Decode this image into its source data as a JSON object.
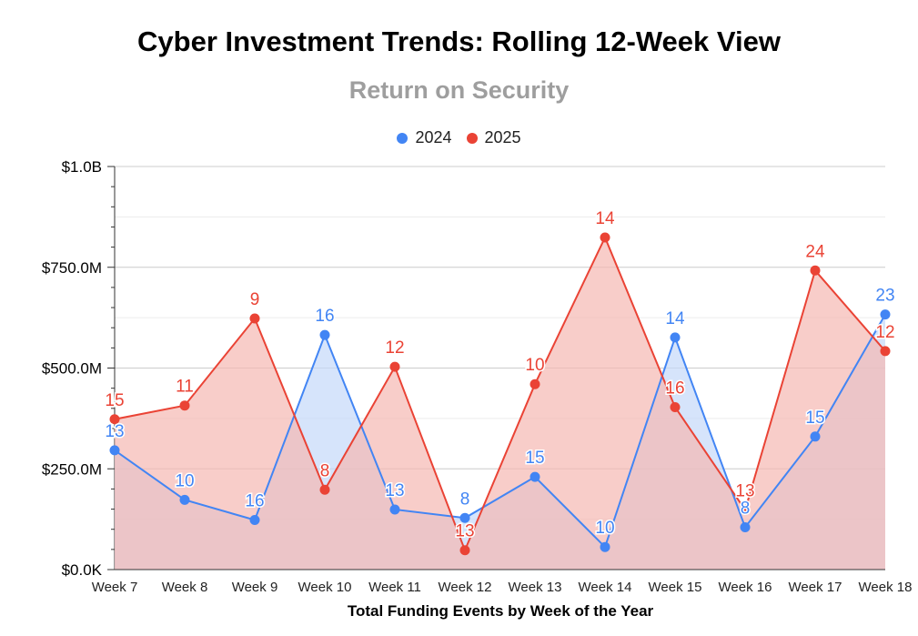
{
  "chart_data": {
    "type": "area",
    "title": "Cyber Investment Trends: Rolling 12-Week View",
    "subtitle": "Return on Security",
    "xlabel": "Total Funding Events by Week of the Year",
    "ylabel": "",
    "categories": [
      "Week 7",
      "Week 8",
      "Week 9",
      "Week 10",
      "Week 11",
      "Week 12",
      "Week 13",
      "Week 14",
      "Week 15",
      "Week 16",
      "Week 17",
      "Week 18"
    ],
    "ylim": [
      0,
      1000
    ],
    "y_unit": "$M",
    "yticks": [
      {
        "value": 0,
        "label": "$0.0K"
      },
      {
        "value": 250,
        "label": "$250.0M"
      },
      {
        "value": 500,
        "label": "$500.0M"
      },
      {
        "value": 750,
        "label": "$750.0M"
      },
      {
        "value": 1000,
        "label": "$1.0B"
      }
    ],
    "grid": true,
    "legend_position": "top",
    "series": [
      {
        "name": "2024",
        "color": "#4285f4",
        "fill": "#c5d8fa",
        "values": [
          296,
          173,
          123,
          582,
          149,
          128,
          230,
          56,
          576,
          105,
          330,
          633
        ],
        "labels": [
          "13",
          "10",
          "16",
          "16",
          "13",
          "8",
          "15",
          "10",
          "14",
          "8",
          "15",
          "23"
        ]
      },
      {
        "name": "2025",
        "color": "#ea4335",
        "fill": "#f5b8b2",
        "values": [
          373,
          407,
          623,
          198,
          503,
          48,
          460,
          824,
          403,
          148,
          742,
          542
        ],
        "labels": [
          "15",
          "11",
          "9",
          "8",
          "12",
          "13",
          "10",
          "14",
          "16",
          "13",
          "24",
          "12"
        ]
      }
    ]
  }
}
